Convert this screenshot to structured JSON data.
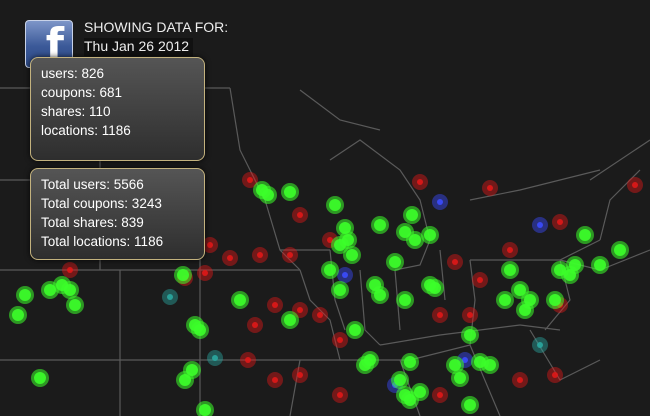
{
  "logo": "f",
  "header": {
    "label": "SHOWING DATA FOR:",
    "date": "Thu Jan 26 2012"
  },
  "daily": [
    "users: 826",
    "coupons: 681",
    "shares: 110",
    "locations: 1186"
  ],
  "totals": [
    "Total users: 5566",
    "Total coupons: 3243",
    "Total shares: 839",
    "Total locations: 1186"
  ]
}
